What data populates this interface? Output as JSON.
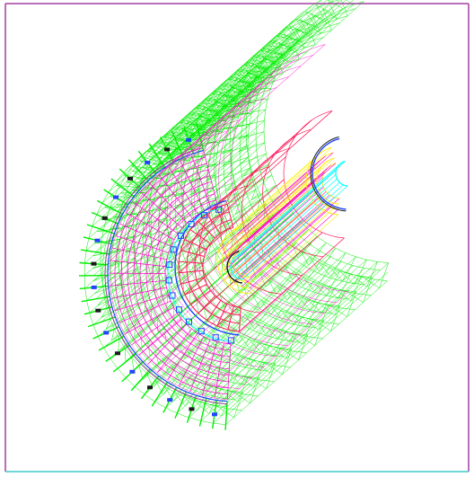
{
  "figure": {
    "subject": "detector-wireframe",
    "colors": {
      "frame_border": "#a13fa1",
      "frame_bottom": "#3fc9c9",
      "muon_system": "#00ee00",
      "outer_calorimeter": "#ff00cc",
      "inner_calorimeter": "#ff1a5a",
      "tracker": "#ffee00",
      "beam_pipe": "#00ffff",
      "structure": "#2244ff",
      "dark_outline": "#1a1a1a",
      "yoke_accent": "#a13fa1"
    },
    "icons": []
  }
}
